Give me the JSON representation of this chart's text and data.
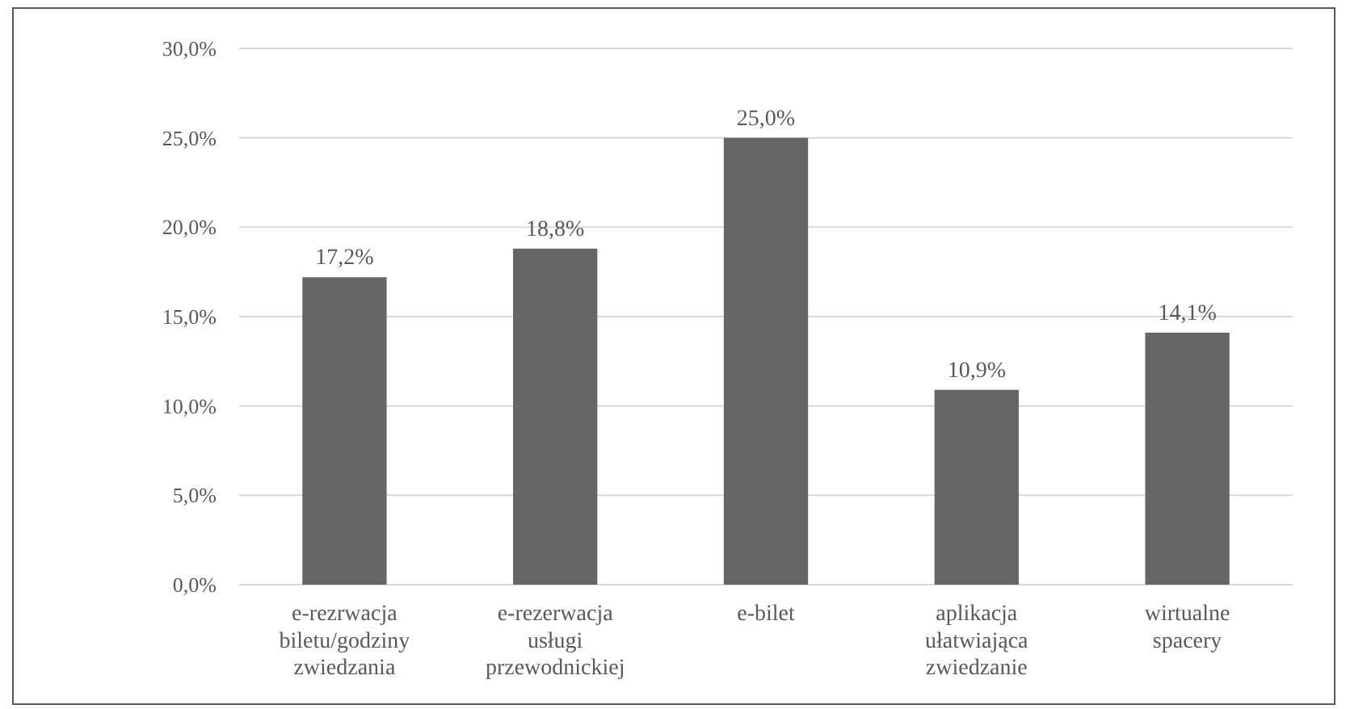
{
  "chart_data": {
    "type": "bar",
    "categories": [
      "e-rezrwacja biletu/godziny zwiedzania",
      "e-rezerwacja usługi przewodnickiej",
      "e-bilet",
      "aplikacja ułatwiająca zwiedzanie",
      "wirtualne spacery"
    ],
    "values": [
      17.2,
      18.8,
      25.0,
      10.9,
      14.1
    ],
    "value_labels": [
      "17,2%",
      "18,8%",
      "25,0%",
      "10,9%",
      "14,1%"
    ],
    "color": "#666666",
    "ylim": [
      0,
      30
    ],
    "yticks": [
      {
        "value": 0,
        "label": "0,0%"
      },
      {
        "value": 5,
        "label": "5,0%"
      },
      {
        "value": 10,
        "label": "10,0%"
      },
      {
        "value": 15,
        "label": "15,0%"
      },
      {
        "value": 20,
        "label": "20,0%"
      },
      {
        "value": 25,
        "label": "25,0%"
      },
      {
        "value": 30,
        "label": "30,0%"
      }
    ],
    "grid": "y"
  }
}
